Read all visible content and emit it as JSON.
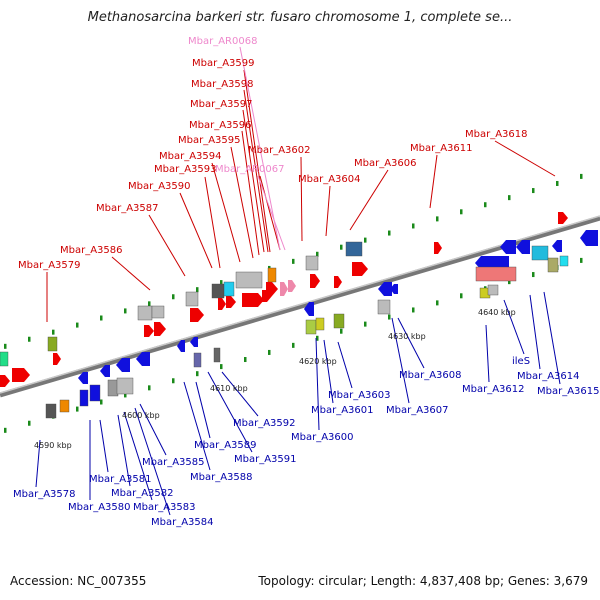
{
  "title": "Methanosarcina barkeri str. fusaro chromosome 1, complete se...",
  "accession": "Accession: NC_007355",
  "summary": "Topology: circular; Length: 4,837,408 bp; Genes: 3,679",
  "colors": {
    "forward_label": "#cc0000",
    "reverse_label": "#0000aa",
    "rna_label": "#ee88cc",
    "forward_gene": "#ee0000",
    "reverse_gene": "#1010dd",
    "axis": "#888888"
  },
  "scale_labels": [
    "4590 kbp",
    "4600 kbp",
    "4610 kbp",
    "4620 kbp",
    "4630 kbp",
    "4640 kbp"
  ],
  "top_labels": [
    "Mbar_AR0068",
    "Mbar_A3599",
    "Mbar_A3598",
    "Mbar_A3597",
    "Mbar_A3596",
    "Mbar_A3595",
    "Mbar_A3594",
    "Mbar_A3593",
    "Mbar_AR0067",
    "Mbar_A3602",
    "Mbar_A3590",
    "Mbar_A3587",
    "Mbar_A3586",
    "Mbar_A3579",
    "Mbar_A3604",
    "Mbar_A3606",
    "Mbar_A3611",
    "Mbar_A3618"
  ],
  "bottom_labels": [
    "Mbar_A3608",
    "Mbar_A3603",
    "Mbar_A3601",
    "Mbar_A3607",
    "Mbar_A3600",
    "Mbar_A3592",
    "Mbar_A3589",
    "Mbar_A3591",
    "Mbar_A3585",
    "Mbar_A3588",
    "Mbar_A3581",
    "Mbar_A3582",
    "Mbar_A3578",
    "Mbar_A3580",
    "Mbar_A3583",
    "Mbar_A3584",
    "Mbar_A3612",
    "ileS",
    "Mbar_A3614",
    "Mbar_A3615"
  ]
}
